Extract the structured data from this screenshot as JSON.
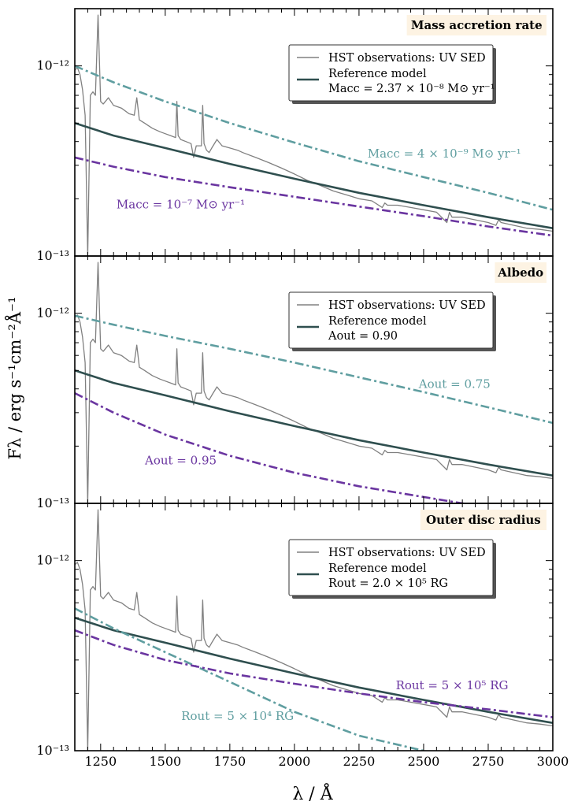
{
  "figure": {
    "ylabel": "Fλ / erg s⁻¹cm⁻²Å⁻¹",
    "xlabel": "λ / Å",
    "ytick_labels": [
      "10⁻¹²",
      "10⁻¹³"
    ],
    "colors": {
      "observations": "#808080",
      "reference": "#2f4f4f",
      "teal": "#5f9ea0",
      "purple": "#6a35a0",
      "title_box": "#fdf3e3"
    }
  },
  "chart_data": [
    {
      "type": "line",
      "title": "Mass accretion rate",
      "xlim": [
        1150,
        3000
      ],
      "ylim": [
        1e-13,
        2e-12
      ],
      "yscale": "log",
      "x_ticks": [
        1250,
        1500,
        1750,
        2000,
        2250,
        2500,
        2750,
        3000
      ],
      "x_tick_labels": [],
      "legend": {
        "position": "upper-right",
        "entries": [
          "HST observations: UV SED",
          "Reference model",
          "Macc = 2.37 × 10⁻⁸ M⊙ yr⁻¹"
        ]
      },
      "annotations": [
        {
          "text": "Macc = 4 × 10⁻⁹ M⊙ yr⁻¹",
          "color": "teal",
          "x": 2580,
          "y": 3.3e-13
        },
        {
          "text": "Macc = 10⁻⁷ M⊙ yr⁻¹",
          "color": "purple",
          "x": 1560,
          "y": 1.78e-13
        }
      ],
      "series": [
        {
          "style": "observations",
          "x": [
            1150,
            1160,
            1170,
            1180,
            1190,
            1200,
            1210,
            1220,
            1230,
            1240,
            1250,
            1260,
            1280,
            1300,
            1330,
            1360,
            1380,
            1390,
            1400,
            1420,
            1450,
            1480,
            1500,
            1520,
            1540,
            1545,
            1550,
            1560,
            1580,
            1600,
            1610,
            1620,
            1640,
            1645,
            1650,
            1660,
            1670,
            1680,
            1700,
            1720,
            1750,
            1780,
            1800,
            1850,
            1900,
            1950,
            2000,
            2050,
            2100,
            2150,
            2200,
            2250,
            2300,
            2340,
            2350,
            2360,
            2400,
            2450,
            2500,
            2550,
            2590,
            2600,
            2610,
            2650,
            2700,
            2750,
            2780,
            2790,
            2800,
            2850,
            2900,
            2950,
            3000
          ],
          "y": [
            9.5e-13,
            9.8e-13,
            9e-13,
            7.5e-13,
            5.5e-13,
            1e-13,
            7e-13,
            7.3e-13,
            7e-13,
            1.85e-12,
            6.5e-13,
            6.3e-13,
            6.8e-13,
            6.2e-13,
            6e-13,
            5.6e-13,
            5.5e-13,
            6.8e-13,
            5.2e-13,
            5e-13,
            4.7e-13,
            4.5e-13,
            4.4e-13,
            4.3e-13,
            4.2e-13,
            6.5e-13,
            4.3e-13,
            4.1e-13,
            4e-13,
            3.9e-13,
            3.3e-13,
            3.8e-13,
            3.8e-13,
            6.2e-13,
            3.9e-13,
            3.6e-13,
            3.5e-13,
            3.7e-13,
            4.1e-13,
            3.8e-13,
            3.7e-13,
            3.6e-13,
            3.5e-13,
            3.3e-13,
            3.1e-13,
            2.9e-13,
            2.7e-13,
            2.5e-13,
            2.35e-13,
            2.2e-13,
            2.1e-13,
            2e-13,
            1.95e-13,
            1.8e-13,
            1.9e-13,
            1.85e-13,
            1.85e-13,
            1.8e-13,
            1.75e-13,
            1.7e-13,
            1.5e-13,
            1.7e-13,
            1.6e-13,
            1.6e-13,
            1.55e-13,
            1.5e-13,
            1.45e-13,
            1.55e-13,
            1.5e-13,
            1.45e-13,
            1.4e-13,
            1.38e-13,
            1.35e-13
          ]
        },
        {
          "style": "reference",
          "x": [
            1150,
            1300,
            1500,
            1750,
            2000,
            2250,
            2500,
            2750,
            3000
          ],
          "y": [
            5e-13,
            4.3e-13,
            3.7e-13,
            3.05e-13,
            2.55e-13,
            2.15e-13,
            1.85e-13,
            1.6e-13,
            1.4e-13
          ]
        },
        {
          "style": "teal",
          "x": [
            1150,
            1300,
            1500,
            1750,
            2000,
            2250,
            2500,
            2750,
            3000
          ],
          "y": [
            1e-12,
            8.2e-13,
            6.5e-13,
            5e-13,
            3.95e-13,
            3.15e-13,
            2.6e-13,
            2.15e-13,
            1.75e-13
          ]
        },
        {
          "style": "purple",
          "x": [
            1150,
            1300,
            1500,
            1750,
            2000,
            2250,
            2500,
            2750,
            3000
          ],
          "y": [
            3.3e-13,
            2.95e-13,
            2.6e-13,
            2.3e-13,
            2.05e-13,
            1.82e-13,
            1.62e-13,
            1.43e-13,
            1.28e-13
          ]
        }
      ]
    },
    {
      "type": "line",
      "title": "Albedo",
      "xlim": [
        1150,
        3000
      ],
      "ylim": [
        1e-13,
        2e-12
      ],
      "yscale": "log",
      "x_ticks": [
        1250,
        1500,
        1750,
        2000,
        2250,
        2500,
        2750,
        3000
      ],
      "x_tick_labels": [],
      "legend": {
        "position": "upper-right",
        "entries": [
          "HST observations: UV SED",
          "Reference model",
          "Aout = 0.90"
        ]
      },
      "annotations": [
        {
          "text": "Aout = 0.75",
          "color": "teal",
          "x": 2620,
          "y": 4.05e-13
        },
        {
          "text": "Aout = 0.95",
          "color": "purple",
          "x": 1560,
          "y": 1.6e-13
        }
      ],
      "series": [
        {
          "style": "observations",
          "x": [
            1150,
            1160,
            1170,
            1180,
            1190,
            1200,
            1210,
            1220,
            1230,
            1240,
            1250,
            1260,
            1280,
            1300,
            1330,
            1360,
            1380,
            1390,
            1400,
            1420,
            1450,
            1480,
            1500,
            1520,
            1540,
            1545,
            1550,
            1560,
            1580,
            1600,
            1610,
            1620,
            1640,
            1645,
            1650,
            1660,
            1670,
            1680,
            1700,
            1720,
            1750,
            1780,
            1800,
            1850,
            1900,
            1950,
            2000,
            2050,
            2100,
            2150,
            2200,
            2250,
            2300,
            2340,
            2350,
            2360,
            2400,
            2450,
            2500,
            2550,
            2590,
            2600,
            2610,
            2650,
            2700,
            2750,
            2780,
            2790,
            2800,
            2850,
            2900,
            2950,
            3000
          ],
          "y": [
            9.5e-13,
            9.8e-13,
            9e-13,
            7.5e-13,
            5.5e-13,
            1e-13,
            7e-13,
            7.3e-13,
            7e-13,
            1.85e-12,
            6.5e-13,
            6.3e-13,
            6.8e-13,
            6.2e-13,
            6e-13,
            5.6e-13,
            5.5e-13,
            6.8e-13,
            5.2e-13,
            5e-13,
            4.7e-13,
            4.5e-13,
            4.4e-13,
            4.3e-13,
            4.2e-13,
            6.5e-13,
            4.3e-13,
            4.1e-13,
            4e-13,
            3.9e-13,
            3.3e-13,
            3.8e-13,
            3.8e-13,
            6.2e-13,
            3.9e-13,
            3.6e-13,
            3.5e-13,
            3.7e-13,
            4.1e-13,
            3.8e-13,
            3.7e-13,
            3.6e-13,
            3.5e-13,
            3.3e-13,
            3.1e-13,
            2.9e-13,
            2.7e-13,
            2.5e-13,
            2.35e-13,
            2.2e-13,
            2.1e-13,
            2e-13,
            1.95e-13,
            1.8e-13,
            1.9e-13,
            1.85e-13,
            1.85e-13,
            1.8e-13,
            1.75e-13,
            1.7e-13,
            1.5e-13,
            1.7e-13,
            1.6e-13,
            1.6e-13,
            1.55e-13,
            1.5e-13,
            1.45e-13,
            1.55e-13,
            1.5e-13,
            1.45e-13,
            1.4e-13,
            1.38e-13,
            1.35e-13
          ]
        },
        {
          "style": "reference",
          "x": [
            1150,
            1300,
            1500,
            1750,
            2000,
            2250,
            2500,
            2750,
            3000
          ],
          "y": [
            5e-13,
            4.3e-13,
            3.7e-13,
            3.05e-13,
            2.55e-13,
            2.15e-13,
            1.85e-13,
            1.6e-13,
            1.4e-13
          ]
        },
        {
          "style": "teal",
          "x": [
            1150,
            1300,
            1500,
            1750,
            2000,
            2250,
            2500,
            2750,
            3000
          ],
          "y": [
            9.7e-13,
            8.7e-13,
            7.6e-13,
            6.5e-13,
            5.5e-13,
            4.6e-13,
            3.85e-13,
            3.2e-13,
            2.65e-13
          ]
        },
        {
          "style": "purple",
          "x": [
            1150,
            1300,
            1500,
            1750,
            2000,
            2250,
            2500,
            2750,
            3000
          ],
          "y": [
            3.8e-13,
            3e-13,
            2.3e-13,
            1.78e-13,
            1.45e-13,
            1.23e-13,
            1.08e-13,
            9.5e-14,
            8.5e-14
          ]
        }
      ]
    },
    {
      "type": "line",
      "title": "Outer disc radius",
      "xlim": [
        1150,
        3000
      ],
      "ylim": [
        1e-13,
        2e-12
      ],
      "yscale": "log",
      "x_ticks": [
        1250,
        1500,
        1750,
        2000,
        2250,
        2500,
        2750,
        3000
      ],
      "x_tick_labels": [
        "1250",
        "1500",
        "1750",
        "2000",
        "2250",
        "2500",
        "2750",
        "3000"
      ],
      "legend": {
        "position": "upper-right",
        "entries": [
          "HST observations: UV SED",
          "Reference model",
          "Rout = 2.0 × 10⁵ RG"
        ]
      },
      "annotations": [
        {
          "text": "Rout = 5 × 10⁵ RG",
          "color": "purple",
          "x": 2610,
          "y": 2.1e-13
        },
        {
          "text": "Rout = 5 × 10⁴ RG",
          "color": "teal",
          "x": 1780,
          "y": 1.45e-13
        }
      ],
      "series": [
        {
          "style": "observations",
          "x": [
            1150,
            1160,
            1170,
            1180,
            1190,
            1200,
            1210,
            1220,
            1230,
            1240,
            1250,
            1260,
            1280,
            1300,
            1330,
            1360,
            1380,
            1390,
            1400,
            1420,
            1450,
            1480,
            1500,
            1520,
            1540,
            1545,
            1550,
            1560,
            1580,
            1600,
            1610,
            1620,
            1640,
            1645,
            1650,
            1660,
            1670,
            1680,
            1700,
            1720,
            1750,
            1780,
            1800,
            1850,
            1900,
            1950,
            2000,
            2050,
            2100,
            2150,
            2200,
            2250,
            2300,
            2340,
            2350,
            2360,
            2400,
            2450,
            2500,
            2550,
            2590,
            2600,
            2610,
            2650,
            2700,
            2750,
            2780,
            2790,
            2800,
            2850,
            2900,
            2950,
            3000
          ],
          "y": [
            9.5e-13,
            9.8e-13,
            9e-13,
            7.5e-13,
            5.5e-13,
            1e-13,
            7e-13,
            7.3e-13,
            7e-13,
            1.85e-12,
            6.5e-13,
            6.3e-13,
            6.8e-13,
            6.2e-13,
            6e-13,
            5.6e-13,
            5.5e-13,
            6.8e-13,
            5.2e-13,
            5e-13,
            4.7e-13,
            4.5e-13,
            4.4e-13,
            4.3e-13,
            4.2e-13,
            6.5e-13,
            4.3e-13,
            4.1e-13,
            4e-13,
            3.9e-13,
            3.3e-13,
            3.8e-13,
            3.8e-13,
            6.2e-13,
            3.9e-13,
            3.6e-13,
            3.5e-13,
            3.7e-13,
            4.1e-13,
            3.8e-13,
            3.7e-13,
            3.6e-13,
            3.5e-13,
            3.3e-13,
            3.1e-13,
            2.9e-13,
            2.7e-13,
            2.5e-13,
            2.35e-13,
            2.2e-13,
            2.1e-13,
            2e-13,
            1.95e-13,
            1.8e-13,
            1.9e-13,
            1.85e-13,
            1.85e-13,
            1.8e-13,
            1.75e-13,
            1.7e-13,
            1.5e-13,
            1.7e-13,
            1.6e-13,
            1.6e-13,
            1.55e-13,
            1.5e-13,
            1.45e-13,
            1.55e-13,
            1.5e-13,
            1.45e-13,
            1.4e-13,
            1.38e-13,
            1.35e-13
          ]
        },
        {
          "style": "reference",
          "x": [
            1150,
            1300,
            1500,
            1750,
            2000,
            2250,
            2500,
            2750,
            3000
          ],
          "y": [
            5e-13,
            4.3e-13,
            3.7e-13,
            3.05e-13,
            2.55e-13,
            2.15e-13,
            1.85e-13,
            1.6e-13,
            1.4e-13
          ]
        },
        {
          "style": "teal",
          "x": [
            1150,
            1300,
            1500,
            1750,
            2000,
            2250,
            2500
          ],
          "y": [
            5.6e-13,
            4.4e-13,
            3.3e-13,
            2.3e-13,
            1.6e-13,
            1.2e-13,
            1e-13
          ]
        },
        {
          "style": "purple",
          "x": [
            1150,
            1300,
            1500,
            1750,
            2000,
            2250,
            2500,
            2750,
            3000
          ],
          "y": [
            4.3e-13,
            3.6e-13,
            3e-13,
            2.55e-13,
            2.25e-13,
            2e-13,
            1.8e-13,
            1.65e-13,
            1.5e-13
          ]
        }
      ]
    }
  ]
}
